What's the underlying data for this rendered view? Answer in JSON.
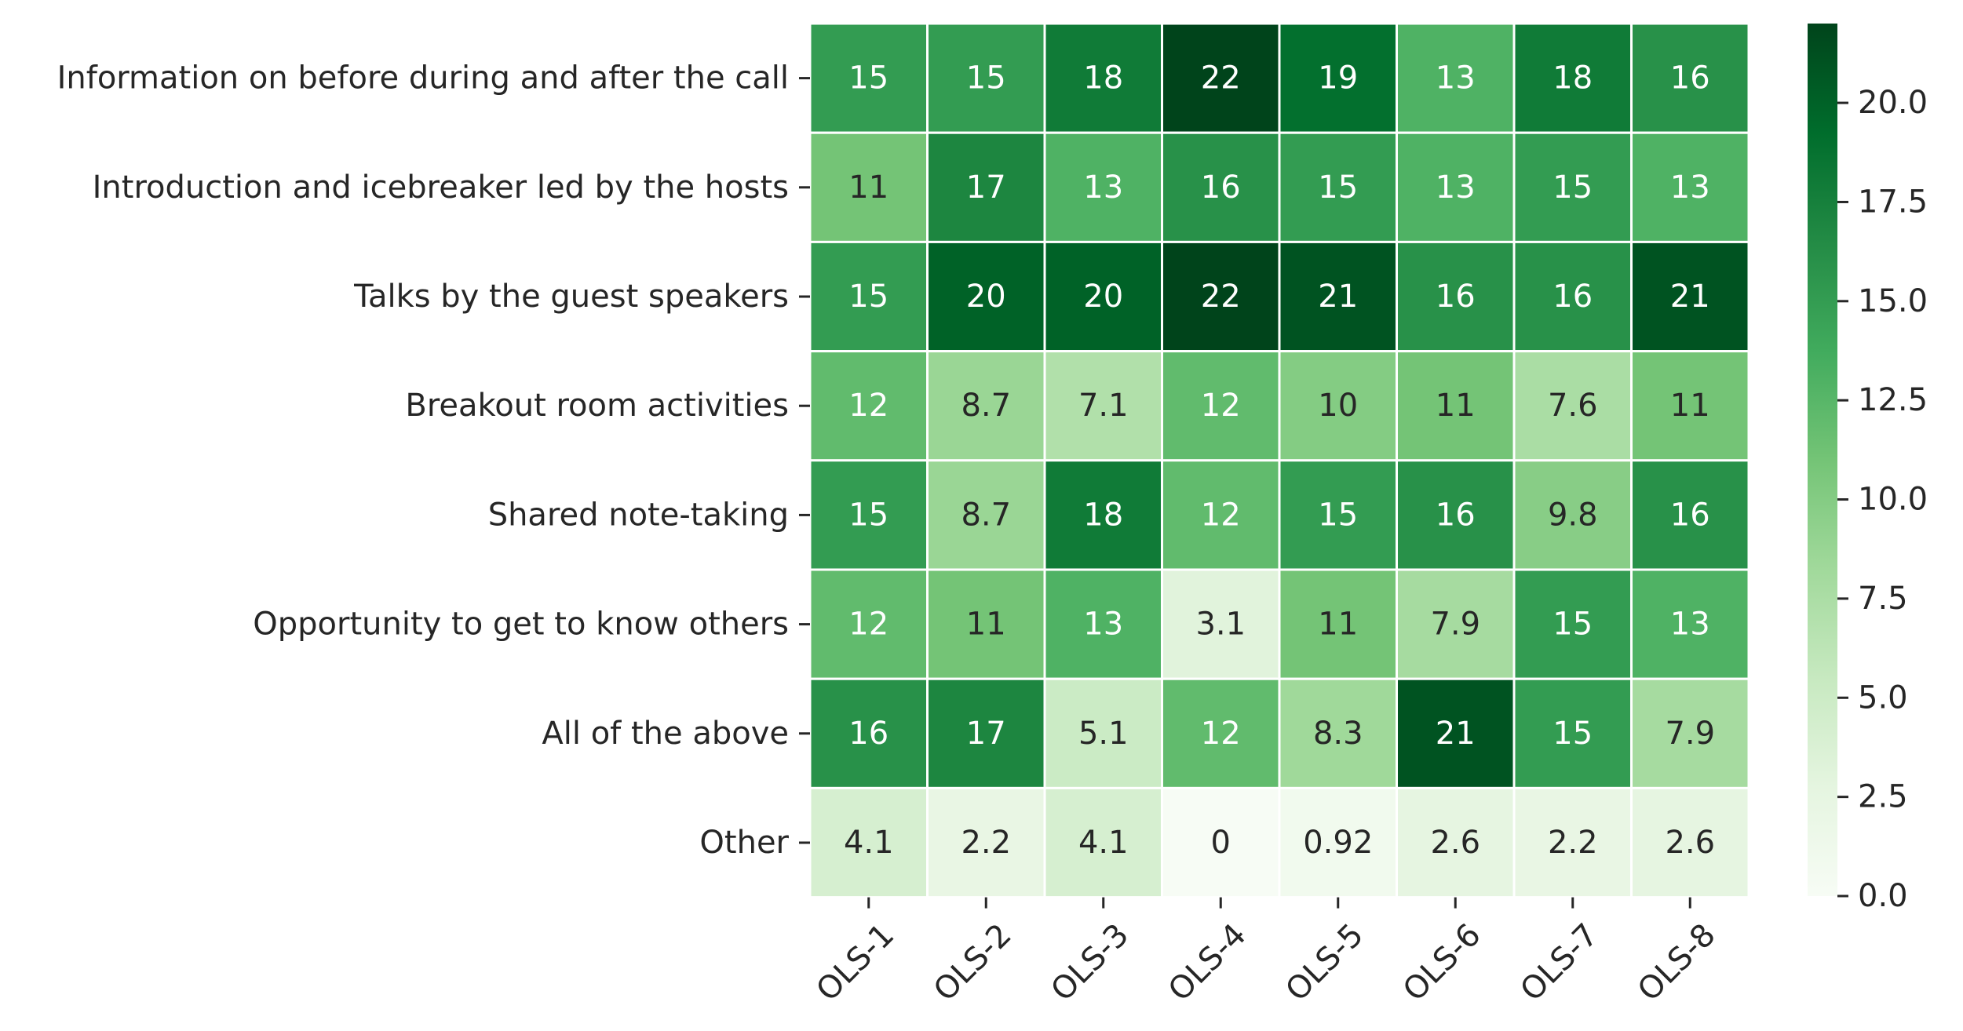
{
  "chart_data": {
    "type": "heatmap",
    "title": "",
    "xlabel": "",
    "ylabel": "",
    "columns": [
      "OLS-1",
      "OLS-2",
      "OLS-3",
      "OLS-4",
      "OLS-5",
      "OLS-6",
      "OLS-7",
      "OLS-8"
    ],
    "rows": [
      "Information on before during and after the call",
      "Introduction and icebreaker led by the hosts",
      "Talks by the guest speakers",
      "Breakout room activities",
      "Shared note-taking",
      "Opportunity to get to know others",
      "All of the above",
      "Other"
    ],
    "values": [
      [
        15,
        15,
        18,
        22,
        19,
        13,
        18,
        16
      ],
      [
        11,
        17,
        13,
        16,
        15,
        13,
        15,
        13
      ],
      [
        15,
        20,
        20,
        22,
        21,
        16,
        16,
        21
      ],
      [
        12,
        8.7,
        7.1,
        12,
        10,
        11,
        7.6,
        11
      ],
      [
        15,
        8.7,
        18,
        12,
        15,
        16,
        9.8,
        16
      ],
      [
        12,
        11,
        13,
        3.1,
        11,
        7.9,
        15,
        13
      ],
      [
        16,
        17,
        5.1,
        12,
        8.3,
        21,
        15,
        7.9
      ],
      [
        4.1,
        2.2,
        4.1,
        0,
        0.92,
        2.6,
        2.2,
        2.6
      ]
    ],
    "annotations": [
      [
        "15",
        "15",
        "18",
        "22",
        "19",
        "13",
        "18",
        "16"
      ],
      [
        "11",
        "17",
        "13",
        "16",
        "15",
        "13",
        "15",
        "13"
      ],
      [
        "15",
        "20",
        "20",
        "22",
        "21",
        "16",
        "16",
        "21"
      ],
      [
        "12",
        "8.7",
        "7.1",
        "12",
        "10",
        "11",
        "7.6",
        "11"
      ],
      [
        "15",
        "8.7",
        "18",
        "12",
        "15",
        "16",
        "9.8",
        "16"
      ],
      [
        "12",
        "11",
        "13",
        "3.1",
        "11",
        "7.9",
        "15",
        "13"
      ],
      [
        "16",
        "17",
        "5.1",
        "12",
        "8.3",
        "21",
        "15",
        "7.9"
      ],
      [
        "4.1",
        "2.2",
        "4.1",
        "0",
        "0.92",
        "2.6",
        "2.2",
        "2.6"
      ]
    ],
    "colormap": "Greens",
    "vmin": 0,
    "vmax": 22,
    "colorbar_ticks": [
      0.0,
      2.5,
      5.0,
      7.5,
      10.0,
      12.5,
      15.0,
      17.5,
      20.0
    ],
    "colorbar_tick_labels": [
      "0.0",
      "2.5",
      "5.0",
      "7.5",
      "10.0",
      "12.5",
      "15.0",
      "17.5",
      "20.0"
    ],
    "colors": {
      "cell_border": "#ffffff",
      "text_dark": "#262626",
      "text_light": "#ffffff",
      "axis": "#262626"
    }
  }
}
